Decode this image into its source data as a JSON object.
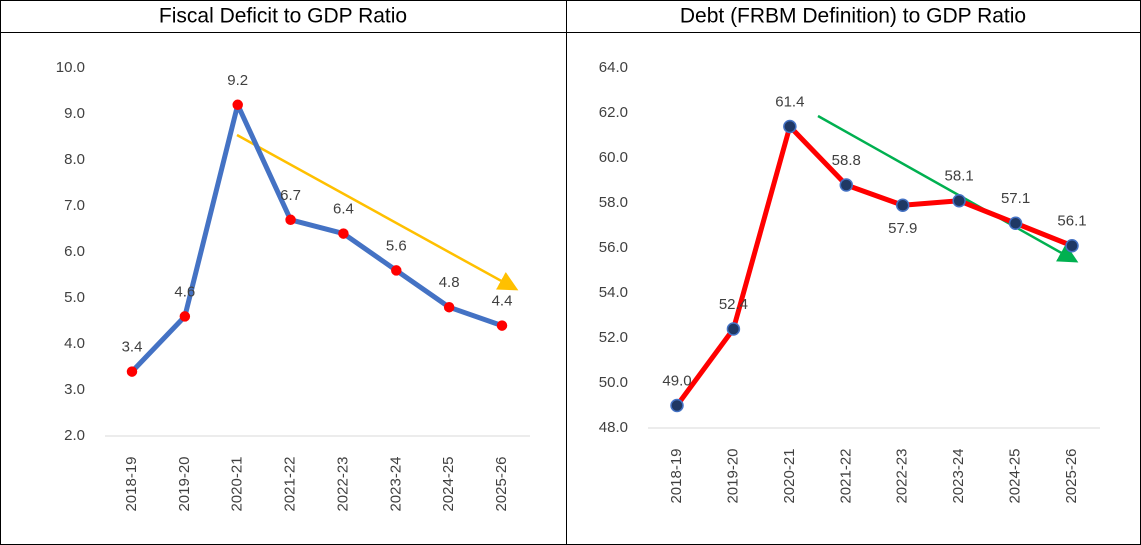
{
  "chart_data": [
    {
      "type": "line",
      "title": "Fiscal Deficit to GDP Ratio",
      "categories": [
        "2018-19",
        "2019-20",
        "2020-21",
        "2021-22",
        "2022-23",
        "2023-24",
        "2024-25",
        "2025-26"
      ],
      "series": [
        {
          "name": "Fiscal Deficit to GDP Ratio",
          "color": "#4472c4",
          "marker_color": "#ff0000",
          "values": [
            3.4,
            4.6,
            9.2,
            6.7,
            6.4,
            5.6,
            4.8,
            4.4
          ]
        }
      ],
      "ylim": [
        2,
        10
      ],
      "yticks": [
        {
          "value": 2,
          "label": "2.0"
        },
        {
          "value": 3,
          "label": "3.0"
        },
        {
          "value": 4,
          "label": "4.0"
        },
        {
          "value": 5,
          "label": "5.0"
        },
        {
          "value": 6,
          "label": "6.0"
        },
        {
          "value": 7,
          "label": "7.0"
        },
        {
          "value": 8,
          "label": "8.0"
        },
        {
          "value": 9,
          "label": "9.0"
        },
        {
          "value": 10,
          "label": "10.0"
        }
      ]
    },
    {
      "type": "line",
      "title": "Debt (FRBM Definition) to GDP Ratio",
      "categories": [
        "2018-19",
        "2019-20",
        "2020-21",
        "2021-22",
        "2022-23",
        "2023-24",
        "2024-25",
        "2025-26"
      ],
      "series": [
        {
          "name": "Debt (FRBM Definition) to GDP Ratio",
          "color": "#ff0000",
          "marker_color": "#1f3864",
          "values": [
            49.0,
            52.4,
            61.4,
            58.8,
            57.9,
            58.1,
            57.1,
            56.1
          ],
          "value_labels": [
            "49.0",
            "52.4",
            "61.4",
            "58.8",
            "57.9",
            "58.1",
            "57.1",
            "56.1"
          ]
        }
      ],
      "ylim": [
        48,
        64
      ],
      "yticks": [
        {
          "value": 48,
          "label": "48.0"
        },
        {
          "value": 50,
          "label": "50.0"
        },
        {
          "value": 52,
          "label": "52.0"
        },
        {
          "value": 54,
          "label": "54.0"
        },
        {
          "value": 56,
          "label": "56.0"
        },
        {
          "value": 58,
          "label": "58.0"
        },
        {
          "value": 60,
          "label": "60.0"
        },
        {
          "value": 62,
          "label": "62.0"
        },
        {
          "value": 64,
          "label": "64.0"
        }
      ]
    }
  ]
}
